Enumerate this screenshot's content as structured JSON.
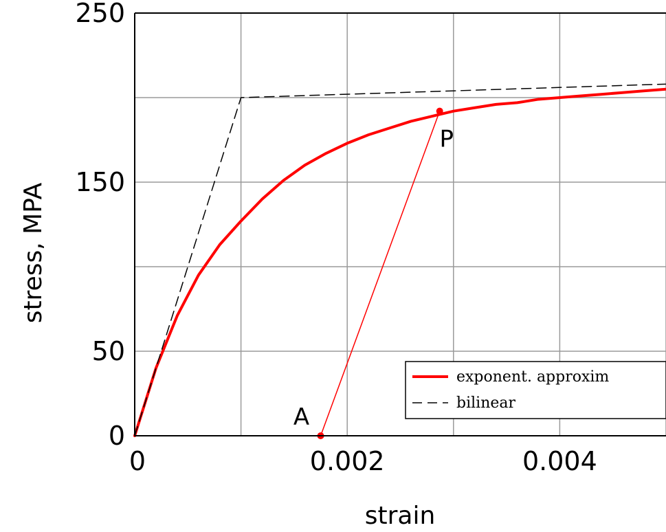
{
  "chart_data": {
    "type": "line",
    "xlabel": "strain",
    "ylabel": "stress, MPA",
    "xlim": [
      0,
      0.005
    ],
    "ylim": [
      0,
      250
    ],
    "x_ticks": [
      0,
      0.002,
      0.004
    ],
    "x_tick_labels": [
      "0",
      "0.002",
      "0.004"
    ],
    "y_ticks": [
      0,
      50,
      150,
      250
    ],
    "y_tick_labels": [
      "0",
      "50",
      "150",
      "250"
    ],
    "grid": true,
    "grid_x": [
      0,
      0.001,
      0.002,
      0.003,
      0.004,
      0.005
    ],
    "grid_y": [
      0,
      50,
      100,
      150,
      200,
      250
    ],
    "legend_position": "bottom-right",
    "series": [
      {
        "name": "exponent. approxim",
        "style": "solid",
        "color": "#ff0000",
        "x": [
          0,
          0.0002,
          0.0004,
          0.0006,
          0.0008,
          0.001,
          0.0012,
          0.0014,
          0.0016,
          0.0018,
          0.002,
          0.0022,
          0.0024,
          0.0026,
          0.0028,
          0.003,
          0.0032,
          0.0034,
          0.0036,
          0.0038,
          0.004,
          0.0042,
          0.0044,
          0.0046,
          0.0048,
          0.005
        ],
        "y": [
          0,
          40,
          71,
          95,
          113,
          127,
          140,
          151,
          160,
          167,
          173,
          178,
          182,
          186,
          189,
          192,
          194,
          196,
          197,
          199,
          200,
          201,
          202,
          203,
          204,
          205
        ]
      },
      {
        "name": "bilinear",
        "style": "dashed",
        "color": "#000000",
        "x": [
          0,
          0.001,
          0.005
        ],
        "y": [
          0,
          200,
          208
        ]
      },
      {
        "name": "",
        "style": "solid-thin",
        "color": "#ff0000",
        "x": [
          0.00175,
          0.00287
        ],
        "y": [
          0,
          192
        ]
      }
    ],
    "points": [
      {
        "label": "P",
        "x": 0.00287,
        "y": 192,
        "color": "#ff0000",
        "label_anchor": "below"
      },
      {
        "label": "A",
        "x": 0.00175,
        "y": 0,
        "color": "#ff0000",
        "label_anchor": "above-left"
      }
    ],
    "legend": [
      {
        "label": "exponent. approxim",
        "style": "solid",
        "color": "#ff0000"
      },
      {
        "label": "bilinear",
        "style": "dashed",
        "color": "#000000"
      }
    ]
  }
}
